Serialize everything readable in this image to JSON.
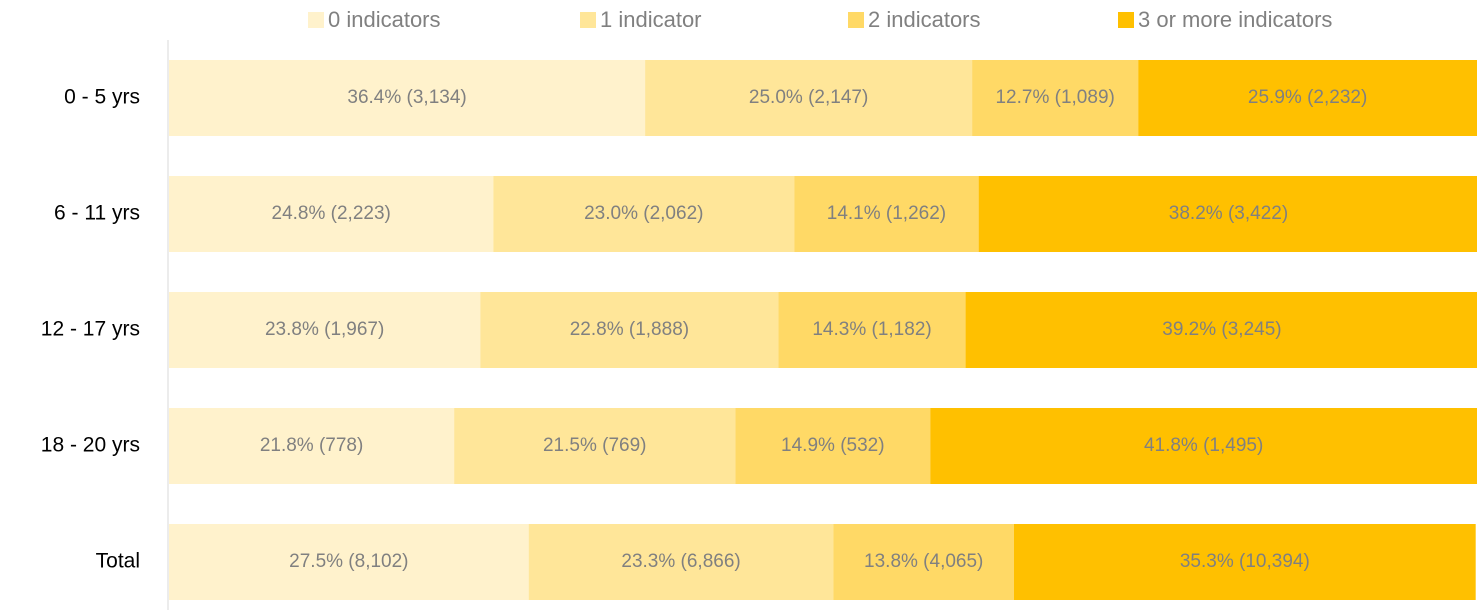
{
  "chart_data": {
    "type": "stacked_barh",
    "categories": [
      "0 - 5 yrs",
      "6 - 11 yrs",
      "12 - 17 yrs",
      "18 - 20 yrs",
      "Total"
    ],
    "xlim": [
      0,
      100
    ],
    "legend": "top",
    "series": [
      {
        "name": "0 indicators",
        "color": "#fff2cc",
        "values": [
          36.4,
          24.8,
          23.8,
          21.8,
          27.5
        ],
        "value_labels": [
          "36.4% (3,134)",
          "24.8% (2,223)",
          "23.8% (1,967)",
          "21.8% (778)",
          "27.5% (8,102)"
        ]
      },
      {
        "name": "1 indicator",
        "color": "#ffe699",
        "values": [
          25.0,
          23.0,
          22.8,
          21.5,
          23.3
        ],
        "value_labels": [
          "25.0% (2,147)",
          "23.0% (2,062)",
          "22.8% (1,888)",
          "21.5% (769)",
          "23.3% (6,866)"
        ]
      },
      {
        "name": "2 indicators",
        "color": "#ffd966",
        "values": [
          12.7,
          14.1,
          14.3,
          14.9,
          13.8
        ],
        "value_labels": [
          "12.7% (1,089)",
          "14.1% (1,262)",
          "14.3% (1,182)",
          "14.9% (532)",
          "13.8% (4,065)"
        ]
      },
      {
        "name": "3 or more indicators",
        "color": "#ffc000",
        "values": [
          25.9,
          38.2,
          39.2,
          41.8,
          35.3
        ],
        "value_labels": [
          "25.9% (2,232)",
          "38.2% (3,422)",
          "39.2% (3,245)",
          "41.8% (1,495)",
          "35.3% (10,394)"
        ]
      }
    ]
  }
}
